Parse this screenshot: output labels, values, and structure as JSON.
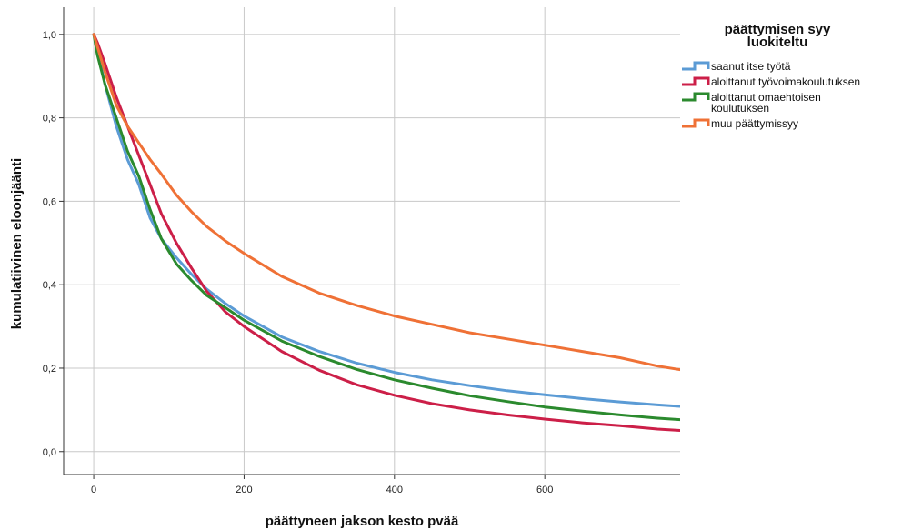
{
  "chart_data": {
    "type": "line",
    "title": "",
    "xlabel": "päättyneen jakson kesto pvää",
    "ylabel": "kumulatiivinen eloonjäänti",
    "xlim": [
      -40,
      780
    ],
    "ylim": [
      -0.055,
      1.065
    ],
    "x_ticks": [
      0,
      200,
      400,
      600
    ],
    "x_tick_labels": [
      "0",
      "200",
      "400",
      "600"
    ],
    "y_ticks": [
      0.0,
      0.2,
      0.4,
      0.6,
      0.8,
      1.0
    ],
    "y_tick_labels": [
      "0,0",
      "0,2",
      "0,4",
      "0,6",
      "0,8",
      "1,0"
    ],
    "grid": true,
    "legend": {
      "placement": "right",
      "title_lines": [
        "päättymisen syy",
        "luokiteltu"
      ]
    },
    "series": [
      {
        "name": "saanut itse työtä",
        "name_lines": [
          "saanut itse työtä"
        ],
        "color": "#5b9bd5",
        "x": [
          0,
          5,
          15,
          30,
          45,
          60,
          75,
          90,
          110,
          130,
          150,
          175,
          200,
          250,
          300,
          350,
          400,
          450,
          500,
          550,
          600,
          650,
          700,
          750,
          785
        ],
        "y": [
          1.0,
          0.96,
          0.88,
          0.78,
          0.7,
          0.64,
          0.56,
          0.51,
          0.465,
          0.425,
          0.39,
          0.355,
          0.325,
          0.275,
          0.24,
          0.212,
          0.19,
          0.172,
          0.158,
          0.146,
          0.136,
          0.127,
          0.119,
          0.112,
          0.108
        ]
      },
      {
        "name": "aloittanut työvoimakoulutuksen",
        "name_lines": [
          "aloittanut työvoimakoulutuksen"
        ],
        "color": "#cc1f48",
        "x": [
          0,
          5,
          15,
          30,
          45,
          60,
          75,
          90,
          110,
          130,
          150,
          175,
          200,
          250,
          300,
          350,
          400,
          450,
          500,
          550,
          600,
          650,
          700,
          750,
          785
        ],
        "y": [
          1.0,
          0.98,
          0.93,
          0.85,
          0.78,
          0.71,
          0.64,
          0.57,
          0.5,
          0.44,
          0.385,
          0.335,
          0.3,
          0.24,
          0.195,
          0.16,
          0.135,
          0.115,
          0.1,
          0.088,
          0.078,
          0.069,
          0.062,
          0.054,
          0.05
        ]
      },
      {
        "name": "aloittanut omaehtoisen koulutuksen",
        "name_lines": [
          "aloittanut omaehtoisen",
          "koulutuksen"
        ],
        "color": "#2b8a2e",
        "x": [
          0,
          5,
          15,
          30,
          45,
          60,
          75,
          90,
          110,
          130,
          150,
          175,
          200,
          250,
          300,
          350,
          400,
          450,
          500,
          550,
          600,
          650,
          700,
          750,
          785
        ],
        "y": [
          1.0,
          0.95,
          0.88,
          0.8,
          0.72,
          0.66,
          0.58,
          0.51,
          0.45,
          0.41,
          0.375,
          0.345,
          0.315,
          0.265,
          0.228,
          0.197,
          0.172,
          0.152,
          0.134,
          0.12,
          0.107,
          0.097,
          0.088,
          0.08,
          0.076
        ]
      },
      {
        "name": "muu päättymissyy",
        "name_lines": [
          "muu päättymissyy"
        ],
        "color": "#ef7136",
        "x": [
          0,
          5,
          15,
          30,
          45,
          60,
          75,
          90,
          110,
          130,
          150,
          175,
          200,
          250,
          300,
          350,
          400,
          450,
          500,
          550,
          600,
          650,
          700,
          750,
          785
        ],
        "y": [
          1.0,
          0.97,
          0.91,
          0.83,
          0.78,
          0.74,
          0.7,
          0.665,
          0.615,
          0.575,
          0.54,
          0.505,
          0.475,
          0.42,
          0.38,
          0.35,
          0.325,
          0.305,
          0.285,
          0.27,
          0.255,
          0.24,
          0.225,
          0.205,
          0.195
        ]
      }
    ]
  }
}
